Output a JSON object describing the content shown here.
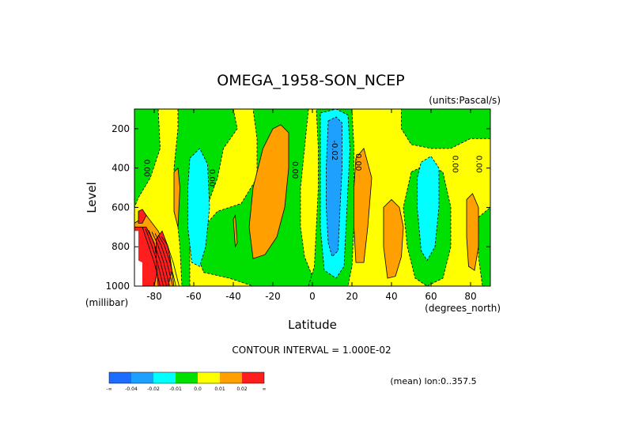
{
  "chart_data": {
    "type": "contour",
    "title": "OMEGA_1958-SON_NCEP",
    "units": "(units:Pascal/s)",
    "xlabel": "Latitude",
    "ylabel": "Level",
    "x_unit": "(degrees_north)",
    "y_unit": "(millibar)",
    "xlim": [
      -90,
      90
    ],
    "ylim": [
      1000,
      100
    ],
    "y_reversed": true,
    "x_ticks": [
      {
        "value": -80,
        "label": "-80"
      },
      {
        "value": -60,
        "label": "-60"
      },
      {
        "value": -40,
        "label": "-40"
      },
      {
        "value": -20,
        "label": "-20"
      },
      {
        "value": 0,
        "label": "0"
      },
      {
        "value": 20,
        "label": "20"
      },
      {
        "value": 40,
        "label": "40"
      },
      {
        "value": 60,
        "label": "60"
      },
      {
        "value": 80,
        "label": "80"
      }
    ],
    "y_ticks": [
      {
        "value": 200,
        "label": "200"
      },
      {
        "value": 400,
        "label": "400"
      },
      {
        "value": 600,
        "label": "600"
      },
      {
        "value": 800,
        "label": "800"
      },
      {
        "value": 1000,
        "label": "1000"
      }
    ],
    "contour_interval_text": "CONTOUR INTERVAL = 1.000E-02",
    "mean_text": "(mean) lon:0..357.5",
    "colorbar": {
      "colors": [
        "#1e6cff",
        "#1ea0ff",
        "#00ffff",
        "#00e000",
        "#ffff00",
        "#ffa000",
        "#ff1e1e"
      ],
      "labels": [
        "-∞",
        "-0.04",
        "-0.02",
        "-0.01",
        "0.0",
        "0.01",
        "0.02",
        "∞"
      ]
    },
    "contour_labels": [
      {
        "x": -85,
        "y": 400,
        "text": "0.00"
      },
      {
        "x": -52,
        "y": 450,
        "text": "0.00"
      },
      {
        "x": -10,
        "y": 410,
        "text": "0.00"
      },
      {
        "x": 10,
        "y": 310,
        "text": "-0.02"
      },
      {
        "x": 22,
        "y": 370,
        "text": "0.00"
      },
      {
        "x": 71,
        "y": 380,
        "text": "0.00"
      },
      {
        "x": 83,
        "y": 380,
        "text": "0.00"
      }
    ],
    "regions": [
      {
        "level": "0.0",
        "color": "#ffff00",
        "polygon": [
          [
            -90,
            100
          ],
          [
            90,
            100
          ],
          [
            90,
            1000
          ],
          [
            -90,
            1000
          ]
        ]
      },
      {
        "level": "-0.01",
        "color": "#00e000",
        "polygon": [
          [
            -90,
            100
          ],
          [
            -78,
            100
          ],
          [
            -77,
            300
          ],
          [
            -82,
            450
          ],
          [
            -88,
            550
          ],
          [
            -90,
            600
          ]
        ]
      },
      {
        "level": "-0.01",
        "color": "#00e000",
        "polygon": [
          [
            -68,
            100
          ],
          [
            -40,
            100
          ],
          [
            -38,
            200
          ],
          [
            -45,
            300
          ],
          [
            -48,
            450
          ],
          [
            -52,
            560
          ],
          [
            -58,
            650
          ],
          [
            -62,
            800
          ],
          [
            -62,
            1000
          ],
          [
            -66,
            1000
          ],
          [
            -67,
            800
          ],
          [
            -69,
            600
          ],
          [
            -70,
            400
          ],
          [
            -68,
            200
          ]
        ]
      },
      {
        "level": "-0.01",
        "color": "#00e000",
        "polygon": [
          [
            -30,
            100
          ],
          [
            -2,
            100
          ],
          [
            -4,
            300
          ],
          [
            -6,
            500
          ],
          [
            -6,
            700
          ],
          [
            -4,
            850
          ],
          [
            0,
            950
          ],
          [
            -2,
            1000
          ],
          [
            -30,
            1000
          ],
          [
            -42,
            960
          ],
          [
            -55,
            930
          ],
          [
            -58,
            850
          ],
          [
            -55,
            700
          ],
          [
            -48,
            620
          ],
          [
            -36,
            580
          ],
          [
            -28,
            450
          ],
          [
            -28,
            250
          ]
        ]
      },
      {
        "level": "-0.01",
        "color": "#00e000",
        "polygon": [
          [
            2,
            100
          ],
          [
            20,
            100
          ],
          [
            21,
            300
          ],
          [
            21,
            500
          ],
          [
            21,
            700
          ],
          [
            20,
            900
          ],
          [
            18,
            1000
          ],
          [
            -2,
            1000
          ],
          [
            1,
            900
          ],
          [
            2,
            700
          ],
          [
            3,
            500
          ],
          [
            3,
            300
          ]
        ]
      },
      {
        "level": "-0.01",
        "color": "#00e000",
        "polygon": [
          [
            45,
            100
          ],
          [
            90,
            100
          ],
          [
            90,
            250
          ],
          [
            80,
            250
          ],
          [
            70,
            300
          ],
          [
            60,
            300
          ],
          [
            50,
            280
          ],
          [
            45,
            200
          ]
        ]
      },
      {
        "level": "-0.01",
        "color": "#00e000",
        "polygon": [
          [
            50,
            420
          ],
          [
            58,
            380
          ],
          [
            66,
            420
          ],
          [
            70,
            600
          ],
          [
            70,
            800
          ],
          [
            66,
            960
          ],
          [
            58,
            1000
          ],
          [
            52,
            960
          ],
          [
            48,
            800
          ],
          [
            46,
            600
          ]
        ]
      },
      {
        "level": "-0.01",
        "color": "#00e000",
        "polygon": [
          [
            84,
            650
          ],
          [
            90,
            600
          ],
          [
            90,
            1000
          ],
          [
            86,
            1000
          ],
          [
            84,
            850
          ]
        ]
      },
      {
        "level": "-0.02",
        "color": "#00ffff",
        "polygon": [
          [
            4,
            120
          ],
          [
            12,
            100
          ],
          [
            18,
            130
          ],
          [
            19,
            300
          ],
          [
            18,
            500
          ],
          [
            17,
            700
          ],
          [
            16,
            900
          ],
          [
            12,
            960
          ],
          [
            6,
            920
          ],
          [
            4,
            700
          ],
          [
            4,
            500
          ],
          [
            4,
            300
          ]
        ]
      },
      {
        "level": "-0.02",
        "color": "#00ffff",
        "polygon": [
          [
            -62,
            350
          ],
          [
            -57,
            300
          ],
          [
            -53,
            380
          ],
          [
            -52,
            600
          ],
          [
            -54,
            800
          ],
          [
            -57,
            900
          ],
          [
            -61,
            880
          ],
          [
            -63,
            700
          ],
          [
            -63,
            500
          ]
        ]
      },
      {
        "level": "-0.02",
        "color": "#00ffff",
        "polygon": [
          [
            55,
            370
          ],
          [
            60,
            340
          ],
          [
            64,
            400
          ],
          [
            64,
            600
          ],
          [
            62,
            800
          ],
          [
            58,
            870
          ],
          [
            55,
            820
          ],
          [
            53,
            600
          ],
          [
            53,
            450
          ]
        ]
      },
      {
        "level": "-0.04",
        "color": "#1ea0ff",
        "polygon": [
          [
            8,
            160
          ],
          [
            12,
            140
          ],
          [
            15,
            170
          ],
          [
            15,
            400
          ],
          [
            14,
            600
          ],
          [
            13,
            820
          ],
          [
            10,
            850
          ],
          [
            8,
            780
          ],
          [
            7,
            600
          ],
          [
            7,
            400
          ]
        ]
      },
      {
        "level": "0.01",
        "color": "#ffa000",
        "polygon": [
          [
            -30,
            500
          ],
          [
            -25,
            300
          ],
          [
            -20,
            200
          ],
          [
            -16,
            180
          ],
          [
            -12,
            220
          ],
          [
            -12,
            400
          ],
          [
            -14,
            600
          ],
          [
            -18,
            750
          ],
          [
            -24,
            840
          ],
          [
            -30,
            860
          ],
          [
            -32,
            700
          ]
        ]
      },
      {
        "level": "0.01",
        "color": "#ffa000",
        "polygon": [
          [
            -40,
            660
          ],
          [
            -39,
            640
          ],
          [
            -38,
            780
          ],
          [
            -39,
            800
          ]
        ]
      },
      {
        "level": "0.01",
        "color": "#ffa000",
        "polygon": [
          [
            22,
            350
          ],
          [
            26,
            300
          ],
          [
            30,
            450
          ],
          [
            28,
            700
          ],
          [
            26,
            880
          ],
          [
            22,
            880
          ],
          [
            21,
            700
          ],
          [
            21,
            500
          ]
        ]
      },
      {
        "level": "0.01",
        "color": "#ffa000",
        "polygon": [
          [
            36,
            600
          ],
          [
            40,
            560
          ],
          [
            44,
            600
          ],
          [
            46,
            700
          ],
          [
            45,
            850
          ],
          [
            42,
            950
          ],
          [
            38,
            960
          ],
          [
            36,
            800
          ]
        ]
      },
      {
        "level": "0.01",
        "color": "#ffa000",
        "polygon": [
          [
            -70,
            420
          ],
          [
            -68,
            400
          ],
          [
            -67,
            500
          ],
          [
            -68,
            700
          ],
          [
            -70,
            620
          ]
        ]
      },
      {
        "level": "0.01",
        "color": "#ffa000",
        "polygon": [
          [
            -90,
            680
          ],
          [
            -84,
            640
          ],
          [
            -78,
            720
          ],
          [
            -72,
            850
          ],
          [
            -70,
            1000
          ],
          [
            -90,
            1000
          ]
        ]
      },
      {
        "level": "0.01",
        "color": "#ffa000",
        "polygon": [
          [
            78,
            560
          ],
          [
            81,
            530
          ],
          [
            84,
            600
          ],
          [
            84,
            800
          ],
          [
            82,
            920
          ],
          [
            79,
            900
          ],
          [
            78,
            750
          ]
        ]
      },
      {
        "level": "0.02",
        "color": "#ff1e1e",
        "polygon": [
          [
            -90,
            700
          ],
          [
            -84,
            700
          ],
          [
            -80,
            780
          ],
          [
            -78,
            900
          ],
          [
            -80,
            1000
          ],
          [
            -90,
            1000
          ]
        ]
      },
      {
        "level": "0.02",
        "color": "#ff1e1e",
        "polygon": [
          [
            -79,
            760
          ],
          [
            -76,
            720
          ],
          [
            -73,
            800
          ],
          [
            -71,
            920
          ],
          [
            -73,
            1000
          ],
          [
            -78,
            1000
          ],
          [
            -79,
            880
          ]
        ]
      },
      {
        "level": "0.02",
        "color": "#ff1e1e",
        "polygon": [
          [
            -88,
            620
          ],
          [
            -86,
            610
          ],
          [
            -84,
            640
          ],
          [
            -86,
            680
          ],
          [
            -88,
            680
          ]
        ]
      }
    ],
    "missing": [
      {
        "polygon": [
          [
            -90,
            720
          ],
          [
            -88,
            720
          ],
          [
            -88,
            870
          ],
          [
            -86,
            880
          ],
          [
            -86,
            1000
          ],
          [
            -90,
            1000
          ]
        ]
      }
    ]
  }
}
